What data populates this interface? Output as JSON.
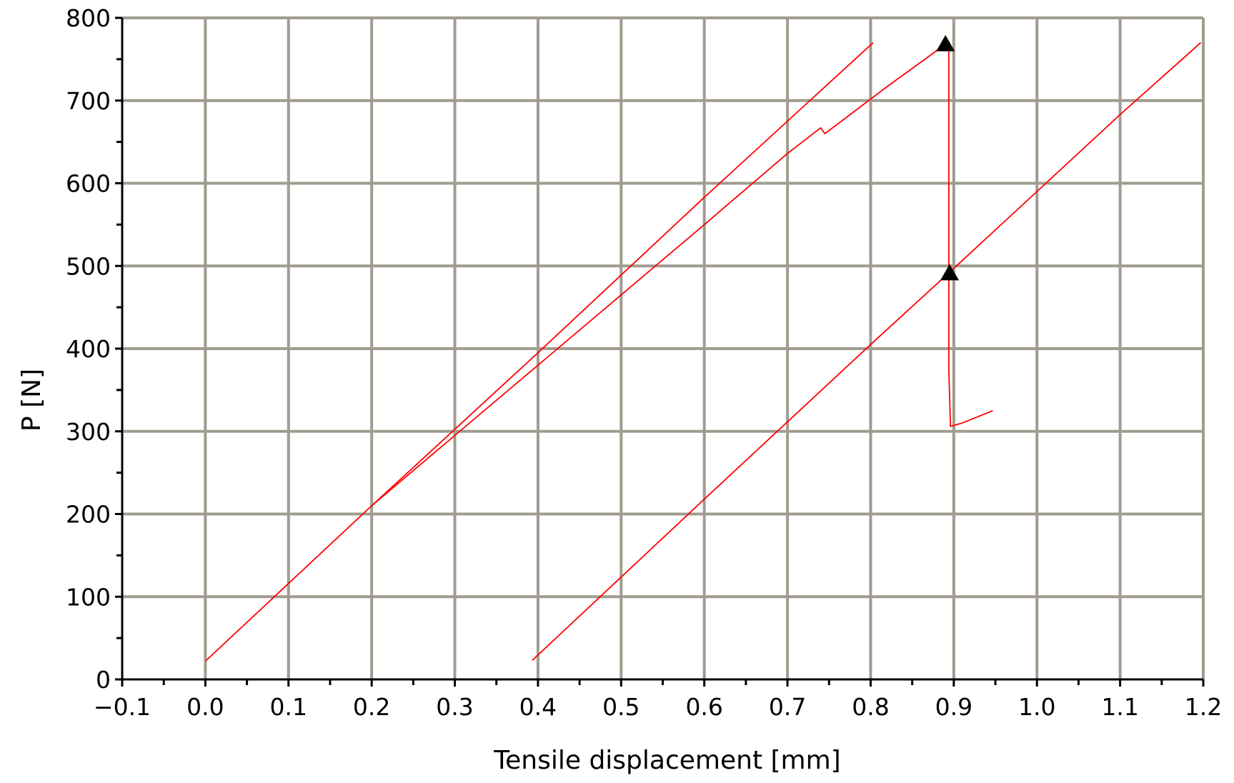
{
  "chart_data": {
    "type": "line",
    "title": "",
    "xlabel": "Tensile displacement [mm]",
    "ylabel": "P [N]",
    "xlim": [
      -0.1,
      1.2
    ],
    "ylim": [
      0,
      800
    ],
    "x_ticks": [
      -0.1,
      0.0,
      0.1,
      0.2,
      0.3,
      0.4,
      0.5,
      0.6,
      0.7,
      0.8,
      0.9,
      1.0,
      1.1,
      1.2
    ],
    "x_tick_labels": [
      "−0.1",
      "0.0",
      "0.1",
      "0.2",
      "0.3",
      "0.4",
      "0.5",
      "0.6",
      "0.7",
      "0.8",
      "0.9",
      "1.0",
      "1.1",
      "1.2"
    ],
    "y_ticks": [
      0,
      100,
      200,
      300,
      400,
      500,
      600,
      700,
      800
    ],
    "y_tick_labels": [
      "0",
      "100",
      "200",
      "300",
      "400",
      "500",
      "600",
      "700",
      "800"
    ],
    "grid": true,
    "legend": "none",
    "series_color": "#ff0000",
    "grid_color": "#a09c90",
    "marker_color": "#000000",
    "series": [
      {
        "x": [
          0.0,
          0.2,
          0.4,
          0.6,
          0.803
        ],
        "y": [
          22,
          210,
          395,
          583,
          770
        ]
      },
      {
        "x": [
          0.2,
          0.3,
          0.4,
          0.5,
          0.6,
          0.7,
          0.74,
          0.745,
          0.82,
          0.89
        ],
        "y": [
          210,
          295,
          380,
          465,
          550,
          636,
          667,
          660,
          717,
          768
        ]
      },
      {
        "x": [
          0.89,
          0.894,
          0.894,
          0.896,
          0.91,
          0.947
        ],
        "y": [
          768,
          760,
          375,
          306,
          310,
          325
        ]
      },
      {
        "x": [
          0.393,
          0.6,
          0.8,
          0.9,
          1.0,
          1.1,
          1.197
        ],
        "y": [
          23,
          218,
          405,
          497,
          590,
          683,
          770
        ]
      }
    ],
    "markers": [
      {
        "x": 0.89,
        "y": 768,
        "symbol": "triangle-up"
      },
      {
        "x": 0.895,
        "y": 491,
        "symbol": "triangle-up"
      }
    ]
  }
}
